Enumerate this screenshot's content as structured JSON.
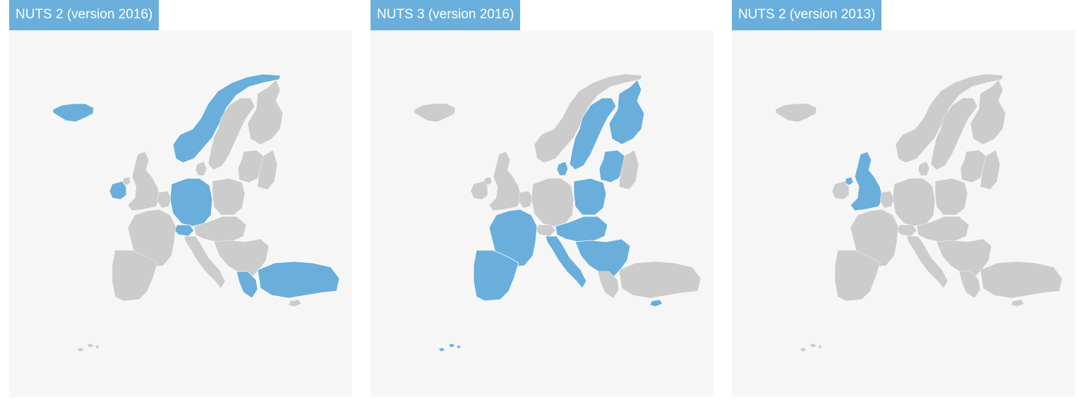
{
  "colors": {
    "tab": "#6aafdb",
    "highlight": "#6aafdb",
    "land": "#cccccc",
    "map_background": "#f6f6f6",
    "border": "#ffffff"
  },
  "panels": [
    {
      "title": "NUTS 2 (version 2016)",
      "highlighted": [
        "iceland",
        "norway",
        "ireland",
        "germany",
        "switzerland",
        "turkey",
        "greece"
      ]
    },
    {
      "title": "NUTS 3 (version 2016)",
      "highlighted": [
        "sweden",
        "finland",
        "baltics",
        "poland",
        "denmark",
        "france",
        "iberia",
        "italy",
        "central-europe",
        "balkans",
        "cyprus",
        "canaries"
      ]
    },
    {
      "title": "NUTS 2 (version 2013)",
      "highlighted": [
        "britain",
        "northern-ireland"
      ]
    }
  ]
}
